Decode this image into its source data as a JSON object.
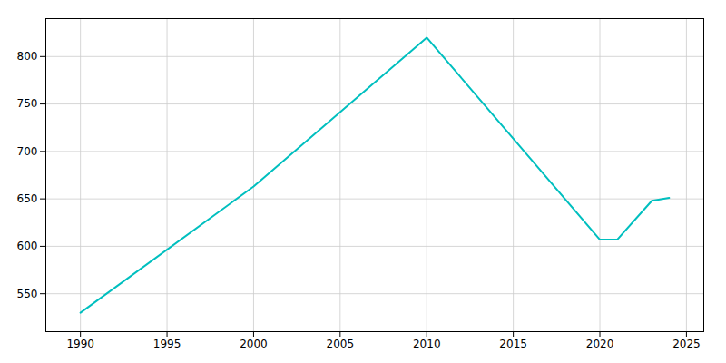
{
  "chart_data": {
    "type": "line",
    "x": [
      1990,
      2000,
      2010,
      2020,
      2021,
      2023,
      2024
    ],
    "values": [
      530,
      663,
      820,
      607,
      607,
      648,
      651
    ],
    "color": "#00BFBF",
    "xlim": [
      1988,
      2026
    ],
    "ylim": [
      510,
      840
    ],
    "xticks": [
      1990,
      1995,
      2000,
      2005,
      2010,
      2015,
      2020,
      2025
    ],
    "yticks": [
      550,
      600,
      650,
      700,
      750,
      800
    ],
    "grid": true
  }
}
